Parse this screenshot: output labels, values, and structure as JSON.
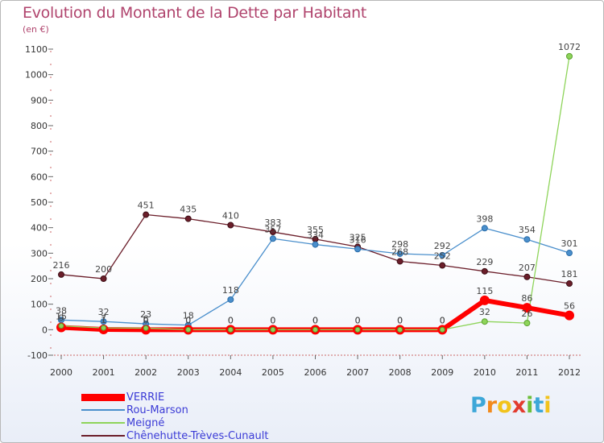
{
  "header": {
    "title": "Evolution du Montant de la Dette par Habitant",
    "unit": "(en €)"
  },
  "logo": {
    "letters": [
      "P",
      "r",
      "o",
      "x",
      "i",
      "t",
      "i"
    ],
    "colors": [
      "#3da7d8",
      "#f28a1c",
      "#f2c31c",
      "#e23b2e",
      "#6cbf3a",
      "#3da7d8",
      "#f2c31c"
    ]
  },
  "chart_data": {
    "type": "line",
    "x": [
      "2000",
      "2001",
      "2002",
      "2003",
      "2004",
      "2005",
      "2006",
      "2007",
      "2008",
      "2009",
      "2010",
      "2011",
      "2012"
    ],
    "ylim": [
      -100,
      1100
    ],
    "yticks": [
      -100,
      0,
      100,
      200,
      300,
      400,
      500,
      600,
      700,
      800,
      900,
      1000,
      1100
    ],
    "grid": false,
    "legend": "bottom-left",
    "series": [
      {
        "name": "Chênehutte-Trèves-Cunault",
        "color": "#6b1e2a",
        "values": [
          216,
          200,
          451,
          435,
          410,
          383,
          355,
          325,
          268,
          252,
          229,
          207,
          181
        ],
        "labels": [
          "216",
          "200",
          "451",
          "435",
          "410",
          "383",
          "355",
          "325",
          "268",
          "252",
          "229",
          "207",
          "181"
        ]
      },
      {
        "name": "Rou-Marson",
        "color": "#4a8fcc",
        "values": [
          38,
          32,
          23,
          18,
          118,
          357,
          334,
          316,
          298,
          292,
          398,
          354,
          301
        ],
        "labels": [
          "38",
          "32",
          "23",
          "18",
          "118",
          "357",
          "334",
          "316",
          "298",
          "292",
          "398",
          "354",
          "301"
        ]
      },
      {
        "name": "Meigné",
        "color": "#8ed45a",
        "values": [
          15,
          7,
          6,
          0,
          0,
          0,
          0,
          0,
          0,
          0,
          32,
          26,
          1072
        ],
        "labels": [
          "15",
          "7",
          "6",
          "0",
          "0",
          "0",
          "0",
          "0",
          "0",
          "0",
          "32",
          "26",
          "1072"
        ]
      },
      {
        "name": "VERRIE",
        "color": "#ff0000",
        "values": [
          9,
          1,
          0,
          0,
          0,
          0,
          0,
          0,
          0,
          0,
          115,
          86,
          56
        ],
        "labels": [
          "9",
          "1",
          "0",
          "0",
          "0",
          "0",
          "0",
          "0",
          "0",
          "0",
          "115",
          "86",
          "56"
        ]
      }
    ],
    "legend_order": [
      "VERRIE",
      "Rou-Marson",
      "Meigné",
      "Chênehutte-Trèves-Cunault"
    ]
  }
}
